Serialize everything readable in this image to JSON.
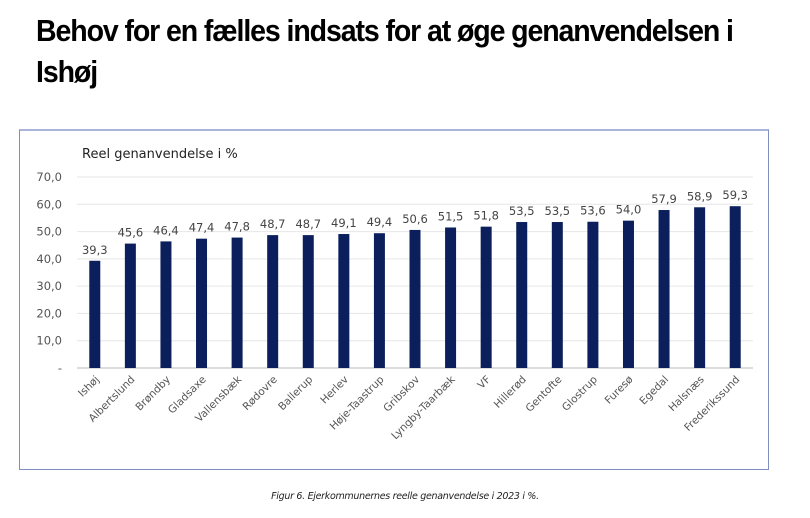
{
  "page": {
    "title": "Behov for en fælles indsats for at øge genanvendelsen i Ishøj",
    "caption": "Figur 6. Ejerkommunernes reelle genanvendelse i 2023 i %."
  },
  "chart_data": {
    "type": "bar",
    "title": "Reel genanvendelse i %",
    "xlabel": "",
    "ylabel": "",
    "ylim": [
      0,
      70
    ],
    "yticks": [
      0,
      10,
      20,
      30,
      40,
      50,
      60,
      70
    ],
    "ytick_labels": [
      "-",
      "10,0",
      "20,0",
      "30,0",
      "40,0",
      "50,0",
      "60,0",
      "70,0"
    ],
    "grid": true,
    "legend": "none",
    "bar_color": "#0b1f5c",
    "categories": [
      "Ishøj",
      "Albertslund",
      "Brøndby",
      "Gladsaxe",
      "Vallensbæk",
      "Rødovre",
      "Ballerup",
      "Herlev",
      "Høje-Taastrup",
      "Gribskov",
      "Lyngby-Taarbæk",
      "VF",
      "Hillerød",
      "Gentofte",
      "Glostrup",
      "Furesø",
      "Egedal",
      "Halsnæs",
      "Frederikssund"
    ],
    "values": [
      39.3,
      45.6,
      46.4,
      47.4,
      47.8,
      48.7,
      48.7,
      49.1,
      49.4,
      50.6,
      51.5,
      51.8,
      53.5,
      53.5,
      53.6,
      54.0,
      57.9,
      58.9,
      59.3
    ],
    "data_labels": [
      "39,3",
      "45,6",
      "46,4",
      "47,4",
      "47,8",
      "48,7",
      "48,7",
      "49,1",
      "49,4",
      "50,6",
      "51,5",
      "51,8",
      "53,5",
      "53,5",
      "53,6",
      "54,0",
      "57,9",
      "58,9",
      "59,3"
    ]
  }
}
